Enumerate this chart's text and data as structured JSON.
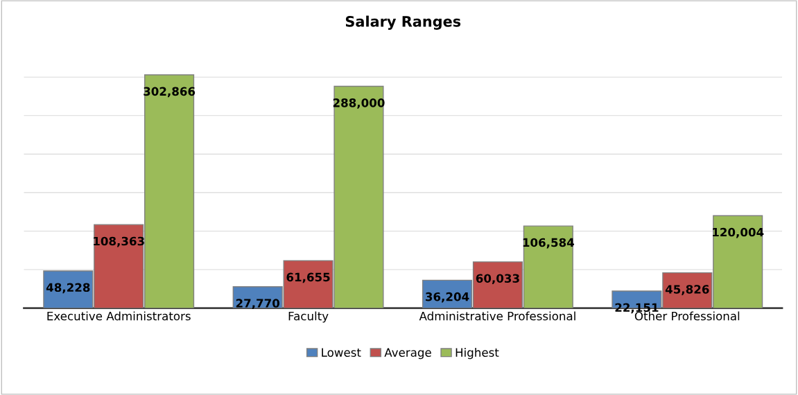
{
  "chart_data": {
    "type": "bar",
    "title": "Salary Ranges",
    "categories": [
      "Executive Administrators",
      "Faculty",
      "Administrative Professional",
      "Other Professional"
    ],
    "series": [
      {
        "name": "Lowest",
        "color": "#4f81bd",
        "values": [
          48228,
          27770,
          36204,
          22151
        ],
        "value_labels": [
          "48,228",
          "27,770",
          "36,204",
          "22,151"
        ]
      },
      {
        "name": "Average",
        "color": "#c0504d",
        "values": [
          108363,
          61655,
          60033,
          45826
        ],
        "value_labels": [
          "108,363",
          "61,655",
          "60,033",
          "45,826"
        ]
      },
      {
        "name": "Highest",
        "color": "#9bbb59",
        "values": [
          302866,
          288000,
          106584,
          120004
        ],
        "value_labels": [
          "302,866",
          "288,000",
          "106,584",
          "120,004"
        ]
      }
    ],
    "tick_labels": "x",
    "grid": "y",
    "legend": "bottom"
  }
}
